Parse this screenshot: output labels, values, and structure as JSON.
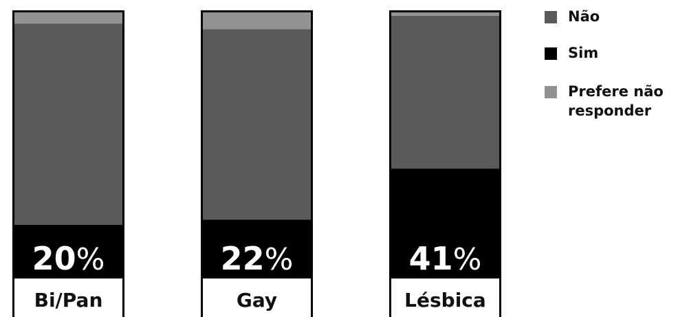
{
  "chart_data": {
    "type": "bar",
    "stacked": true,
    "orientation": "vertical",
    "categories": [
      "Bi/Pan",
      "Gay",
      "Lésbica"
    ],
    "series": [
      {
        "name": "Sim",
        "values": [
          20,
          22,
          41
        ],
        "color": "#000000"
      },
      {
        "name": "Não",
        "values": [
          75,
          71,
          57
        ],
        "color": "#5a5a59"
      },
      {
        "name": "Prefere não responder",
        "values": [
          5,
          7,
          2
        ],
        "color": "#939393"
      }
    ],
    "data_labels": [
      {
        "number": "20",
        "suffix": "%"
      },
      {
        "number": "22",
        "suffix": "%"
      },
      {
        "number": "41",
        "suffix": "%"
      }
    ],
    "ylim": [
      0,
      100
    ],
    "unit": "%",
    "grid": false,
    "legend_position": "right"
  },
  "legend": [
    {
      "label": "Não",
      "color": "#5a5a59"
    },
    {
      "label": "Sim",
      "color": "#000000"
    },
    {
      "label": "Prefere não responder",
      "color": "#939393"
    }
  ]
}
